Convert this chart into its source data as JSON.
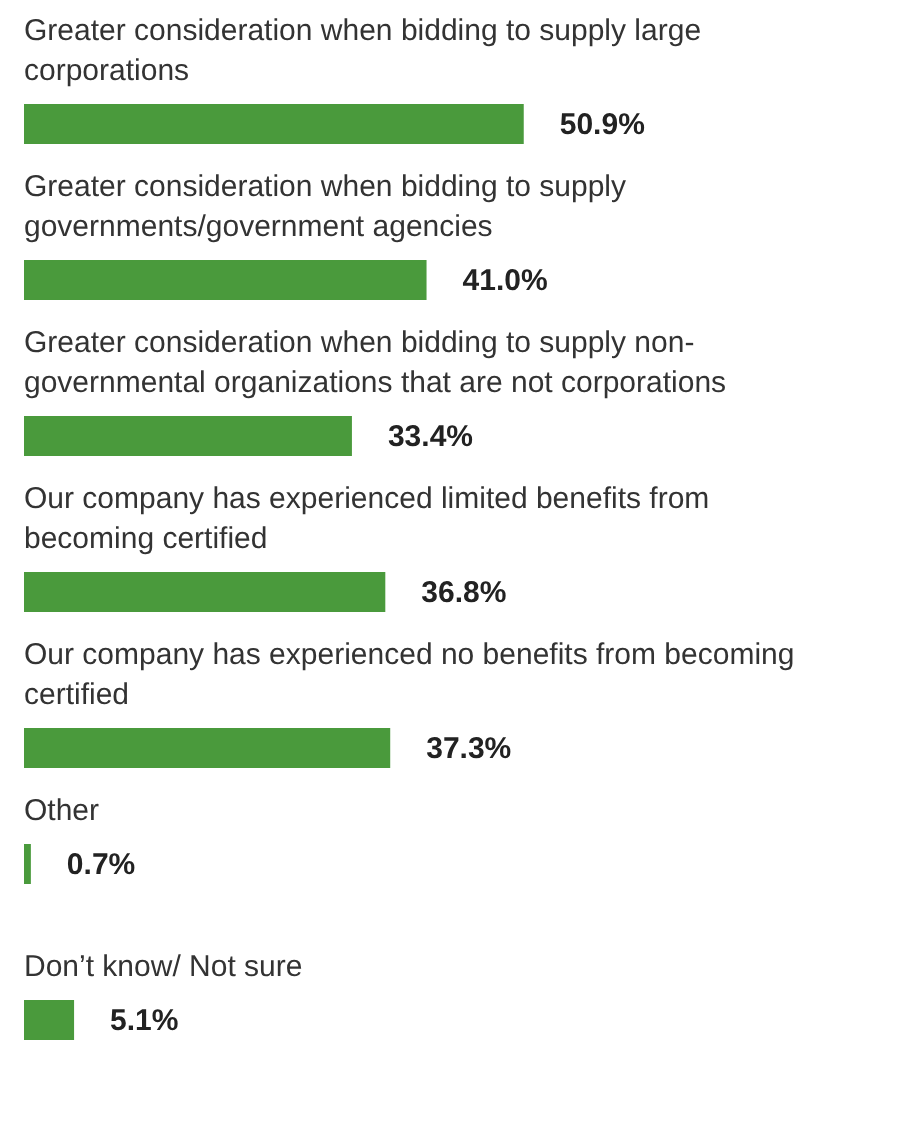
{
  "chart_data": {
    "type": "bar",
    "orientation": "horizontal",
    "data_labels": true,
    "tick_labels": false,
    "categories": [
      "Greater consideration when bidding to supply large corporations",
      "Greater consideration when bidding to supply governments/government agencies",
      "Greater consideration when bidding to supply non-governmental organizations that are not corporations",
      "Our company has experienced limited benefits from becoming certified",
      "Our company has experienced no benefits from becoming certified",
      "Other",
      "Don’t know/ Not sure"
    ],
    "values": [
      50.9,
      41.0,
      33.4,
      36.8,
      37.3,
      0.7,
      5.1
    ],
    "value_labels": [
      "50.9%",
      "41.0%",
      "33.4%",
      "36.8%",
      "37.3%",
      "0.7%",
      "5.1%"
    ],
    "color": "#4a9a3c"
  }
}
